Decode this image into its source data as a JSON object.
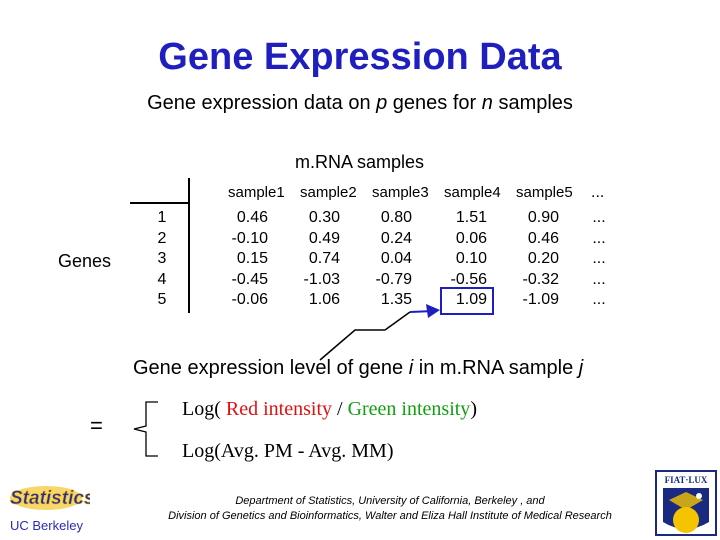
{
  "title": "Gene Expression Data",
  "subtitle": {
    "part1": "Gene expression data on ",
    "p": "p",
    "part2": " genes for ",
    "n": "n",
    "part3": " samples"
  },
  "mrna_label": "m.RNA samples",
  "genes_label": "Genes",
  "table": {
    "headers": [
      "sample1",
      "sample2",
      "sample3",
      "sample4",
      "sample5",
      "..."
    ],
    "row_indices": [
      "1",
      "2",
      "3",
      "4",
      "5"
    ],
    "columns": [
      [
        "0.46",
        "-0.10",
        "0.15",
        "-0.45",
        "-0.06"
      ],
      [
        "0.30",
        "0.49",
        "0.74",
        "-1.03",
        "1.06"
      ],
      [
        "0.80",
        "0.24",
        "0.04",
        "-0.79",
        "1.35"
      ],
      [
        "1.51",
        "0.06",
        "0.10",
        "-0.56",
        "1.09"
      ],
      [
        "0.90",
        "0.46",
        "0.20",
        "-0.32",
        "-1.09"
      ],
      [
        "...",
        "...",
        "...",
        "...",
        "..."
      ]
    ]
  },
  "level_text": {
    "part1": "Gene expression level of gene ",
    "i": "i",
    "part2": " in m.RNA sample ",
    "j": "j"
  },
  "equals": "=",
  "formula": {
    "line1_prefix": "Log( ",
    "red": "Red intensity",
    "slash": " / ",
    "green": "Green intensity",
    "line1_suffix": ")",
    "line2": "Log(Avg. PM - Avg. MM)"
  },
  "footer": {
    "line1": "Department of Statistics, University of California, Berkeley , and",
    "line2": "Division of Genetics and Bioinformatics, Walter and Eliza Hall Institute of Medical Research"
  },
  "logos": {
    "stats_text": "Statistics",
    "berkeley_text": "UC Berkeley",
    "fiat_text": "FIAT·LUX"
  },
  "colors": {
    "title": "#1f1fbf",
    "red": "#e01010",
    "green": "#10a010",
    "highlight": "#1f1fbf"
  }
}
